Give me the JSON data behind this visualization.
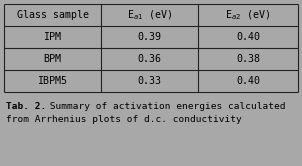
{
  "bg_color": "#a8a8a8",
  "table_bg": "#a8a8a8",
  "header_row": [
    "Glass sample",
    "E$_{a1}$ (eV)",
    "E$_{a2}$ (eV)"
  ],
  "rows": [
    [
      "IPM",
      "0.39",
      "0.40"
    ],
    [
      "BPM",
      "0.36",
      "0.38"
    ],
    [
      "IBPM5",
      "0.33",
      "0.40"
    ]
  ],
  "caption_bold": "Tab. 2.",
  "caption_normal": " Summary of activation energies calculated",
  "caption_line2": "from Arrhenius plots of d.c. conductivity",
  "font_size": 7.2,
  "caption_font_size": 6.8,
  "line_color": "#222222",
  "text_color": "#000000"
}
